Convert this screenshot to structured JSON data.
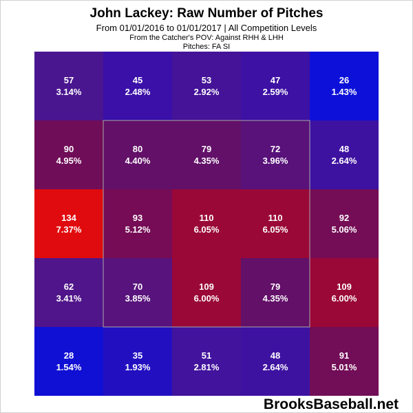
{
  "title": "John Lackey: Raw Number of Pitches",
  "subtitle": "From 01/01/2016 to 01/01/2017 | All Competition Levels",
  "notes": [
    "From the Catcher's POV:  Against RHH & LHH",
    "Pitches:  FA  SI"
  ],
  "brand": "BrooksBaseball.net",
  "chart_data": {
    "type": "heatmap",
    "title": "John Lackey: Raw Number of Pitches",
    "rows": 5,
    "cols": 5,
    "strike_zone": "inner 3x3 cells outlined",
    "cells": [
      [
        {
          "count": "57",
          "pct": "3.14%",
          "color": "#4a1690"
        },
        {
          "count": "45",
          "pct": "2.48%",
          "color": "#3a10a8"
        },
        {
          "count": "53",
          "pct": "2.92%",
          "color": "#441398"
        },
        {
          "count": "47",
          "pct": "2.59%",
          "color": "#3d11a4"
        },
        {
          "count": "26",
          "pct": "1.43%",
          "color": "#0c10d8"
        }
      ],
      [
        {
          "count": "90",
          "pct": "4.95%",
          "color": "#700d58"
        },
        {
          "count": "80",
          "pct": "4.40%",
          "color": "#631068"
        },
        {
          "count": "79",
          "pct": "4.35%",
          "color": "#621068"
        },
        {
          "count": "72",
          "pct": "3.96%",
          "color": "#58127a"
        },
        {
          "count": "48",
          "pct": "2.64%",
          "color": "#3e12a0"
        }
      ],
      [
        {
          "count": "134",
          "pct": "7.37%",
          "color": "#e00b0e"
        },
        {
          "count": "93",
          "pct": "5.12%",
          "color": "#750c55"
        },
        {
          "count": "110",
          "pct": "6.05%",
          "color": "#9a0838"
        },
        {
          "count": "110",
          "pct": "6.05%",
          "color": "#9a0838"
        },
        {
          "count": "92",
          "pct": "5.06%",
          "color": "#740d56"
        }
      ],
      [
        {
          "count": "62",
          "pct": "3.41%",
          "color": "#50158a"
        },
        {
          "count": "70",
          "pct": "3.85%",
          "color": "#58137c"
        },
        {
          "count": "109",
          "pct": "6.00%",
          "color": "#9a0838"
        },
        {
          "count": "79",
          "pct": "4.35%",
          "color": "#621068"
        },
        {
          "count": "109",
          "pct": "6.00%",
          "color": "#9a0838"
        }
      ],
      [
        {
          "count": "28",
          "pct": "1.54%",
          "color": "#100fd4"
        },
        {
          "count": "35",
          "pct": "1.93%",
          "color": "#2210c0"
        },
        {
          "count": "51",
          "pct": "2.81%",
          "color": "#42139c"
        },
        {
          "count": "48",
          "pct": "2.64%",
          "color": "#3e12a0"
        },
        {
          "count": "91",
          "pct": "5.01%",
          "color": "#720d57"
        }
      ]
    ]
  }
}
